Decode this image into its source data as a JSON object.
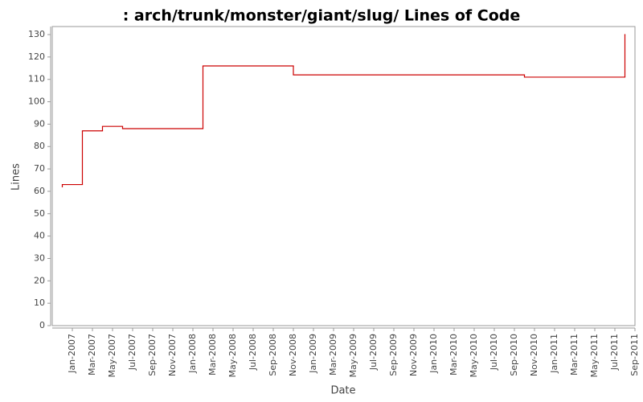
{
  "chart_data": {
    "type": "step",
    "title": ": arch/trunk/monster/giant/slug/ Lines of Code",
    "x_label": "Date",
    "y_label": "Lines",
    "color": "#cc0000",
    "x": [
      "2006-12",
      "2006-12",
      "2007-02",
      "2007-04",
      "2007-06",
      "2008-02",
      "2008-11",
      "2010-10",
      "2011-08"
    ],
    "values": [
      62,
      63,
      87,
      89,
      88,
      116,
      112,
      111,
      130
    ],
    "xlim": [
      "2006-11",
      "2011-09"
    ],
    "xticks": [
      {
        "value": "2007-01",
        "label": "Jan-2007"
      },
      {
        "value": "2007-03",
        "label": "Mar-2007"
      },
      {
        "value": "2007-05",
        "label": "May-2007"
      },
      {
        "value": "2007-07",
        "label": "Jul-2007"
      },
      {
        "value": "2007-09",
        "label": "Sep-2007"
      },
      {
        "value": "2007-11",
        "label": "Nov-2007"
      },
      {
        "value": "2008-01",
        "label": "Jan-2008"
      },
      {
        "value": "2008-03",
        "label": "Mar-2008"
      },
      {
        "value": "2008-05",
        "label": "May-2008"
      },
      {
        "value": "2008-07",
        "label": "Jul-2008"
      },
      {
        "value": "2008-09",
        "label": "Sep-2008"
      },
      {
        "value": "2008-11",
        "label": "Nov-2008"
      },
      {
        "value": "2009-01",
        "label": "Jan-2009"
      },
      {
        "value": "2009-03",
        "label": "Mar-2009"
      },
      {
        "value": "2009-05",
        "label": "May-2009"
      },
      {
        "value": "2009-07",
        "label": "Jul-2009"
      },
      {
        "value": "2009-09",
        "label": "Sep-2009"
      },
      {
        "value": "2009-11",
        "label": "Nov-2009"
      },
      {
        "value": "2010-01",
        "label": "Jan-2010"
      },
      {
        "value": "2010-03",
        "label": "Mar-2010"
      },
      {
        "value": "2010-05",
        "label": "May-2010"
      },
      {
        "value": "2010-07",
        "label": "Jul-2010"
      },
      {
        "value": "2010-09",
        "label": "Sep-2010"
      },
      {
        "value": "2010-11",
        "label": "Nov-2010"
      },
      {
        "value": "2011-01",
        "label": "Jan-2011"
      },
      {
        "value": "2011-03",
        "label": "Mar-2011"
      },
      {
        "value": "2011-05",
        "label": "May-2011"
      },
      {
        "value": "2011-07",
        "label": "Jul-2011"
      },
      {
        "value": "2011-09",
        "label": "Sep-2011"
      }
    ],
    "ylim": [
      0,
      133.6
    ],
    "yticks": [
      0,
      10,
      20,
      30,
      40,
      50,
      60,
      70,
      80,
      90,
      100,
      110,
      120,
      130
    ]
  }
}
